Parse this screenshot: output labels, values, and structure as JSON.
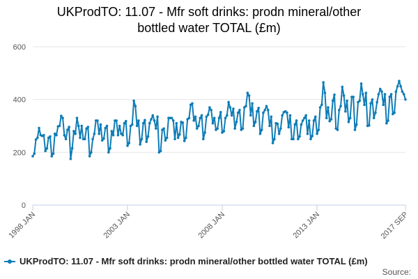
{
  "colors": {
    "series": "#0e7cb6",
    "grid": "#e6e6e6",
    "axis_text": "#555555"
  },
  "chart_data": {
    "type": "line",
    "title": "UKProdTO: 11.07 - Mfr soft drinks: prodn mineral/other bottled water TOTAL (£m)",
    "title_lines": [
      "UKProdTO: 11.07 - Mfr soft drinks: prodn mineral/other",
      "bottled water TOTAL (£m)"
    ],
    "xlabel": "",
    "ylabel": "",
    "ylim": [
      0,
      600
    ],
    "yticks": [
      0,
      200,
      400,
      600
    ],
    "x_tick_labels": [
      "1998 JAN",
      "2003 JAN",
      "2008 JAN",
      "2013 JAN",
      "2017 SEP"
    ],
    "x_tick_indices": [
      0,
      60,
      120,
      180,
      236
    ],
    "x_start": "1998 JAN",
    "x_end": "2017 SEP",
    "series": [
      {
        "name": "UKProdTO: 11.07 - Mfr soft drinks: prodn mineral/other bottled water TOTAL (£m)",
        "values": [
          185,
          195,
          248,
          255,
          292,
          265,
          262,
          265,
          205,
          215,
          255,
          260,
          185,
          195,
          270,
          265,
          298,
          300,
          338,
          330,
          265,
          250,
          285,
          296,
          175,
          215,
          280,
          270,
          330,
          300,
          255,
          300,
          250,
          250,
          290,
          296,
          185,
          200,
          250,
          270,
          320,
          320,
          270,
          305,
          245,
          252,
          292,
          300,
          200,
          215,
          280,
          265,
          320,
          320,
          265,
          300,
          270,
          265,
          310,
          318,
          225,
          235,
          300,
          305,
          395,
          375,
          300,
          320,
          230,
          250,
          310,
          322,
          240,
          260,
          310,
          325,
          340,
          320,
          290,
          335,
          200,
          205,
          285,
          290,
          245,
          255,
          330,
          330,
          330,
          320,
          250,
          310,
          255,
          268,
          315,
          312,
          243,
          255,
          325,
          330,
          380,
          385,
          320,
          335,
          290,
          300,
          330,
          340,
          250,
          275,
          335,
          342,
          370,
          360,
          310,
          330,
          285,
          290,
          330,
          352,
          275,
          280,
          330,
          340,
          390,
          370,
          340,
          365,
          290,
          315,
          350,
          360,
          285,
          290,
          370,
          375,
          425,
          415,
          340,
          385,
          300,
          315,
          355,
          368,
          270,
          285,
          350,
          360,
          375,
          360,
          300,
          335,
          235,
          250,
          310,
          308,
          270,
          290,
          340,
          352,
          355,
          350,
          295,
          340,
          250,
          250,
          305,
          320,
          250,
          260,
          305,
          320,
          330,
          340,
          270,
          320,
          250,
          262,
          320,
          335,
          270,
          285,
          370,
          380,
          465,
          425,
          330,
          370,
          318,
          325,
          395,
          418,
          290,
          285,
          360,
          375,
          448,
          415,
          355,
          395,
          315,
          330,
          410,
          410,
          285,
          305,
          390,
          395,
          460,
          420,
          380,
          425,
          300,
          302,
          385,
          400,
          330,
          350,
          390,
          420,
          440,
          430,
          380,
          420,
          310,
          320,
          410,
          420,
          345,
          350,
          430,
          450,
          470,
          450,
          430,
          420,
          400
        ]
      }
    ]
  },
  "legend": {
    "label": "UKProdTO: 11.07 - Mfr soft drinks: prodn mineral/other bottled water TOTAL (£m)"
  },
  "credit": {
    "label": "Source:"
  }
}
